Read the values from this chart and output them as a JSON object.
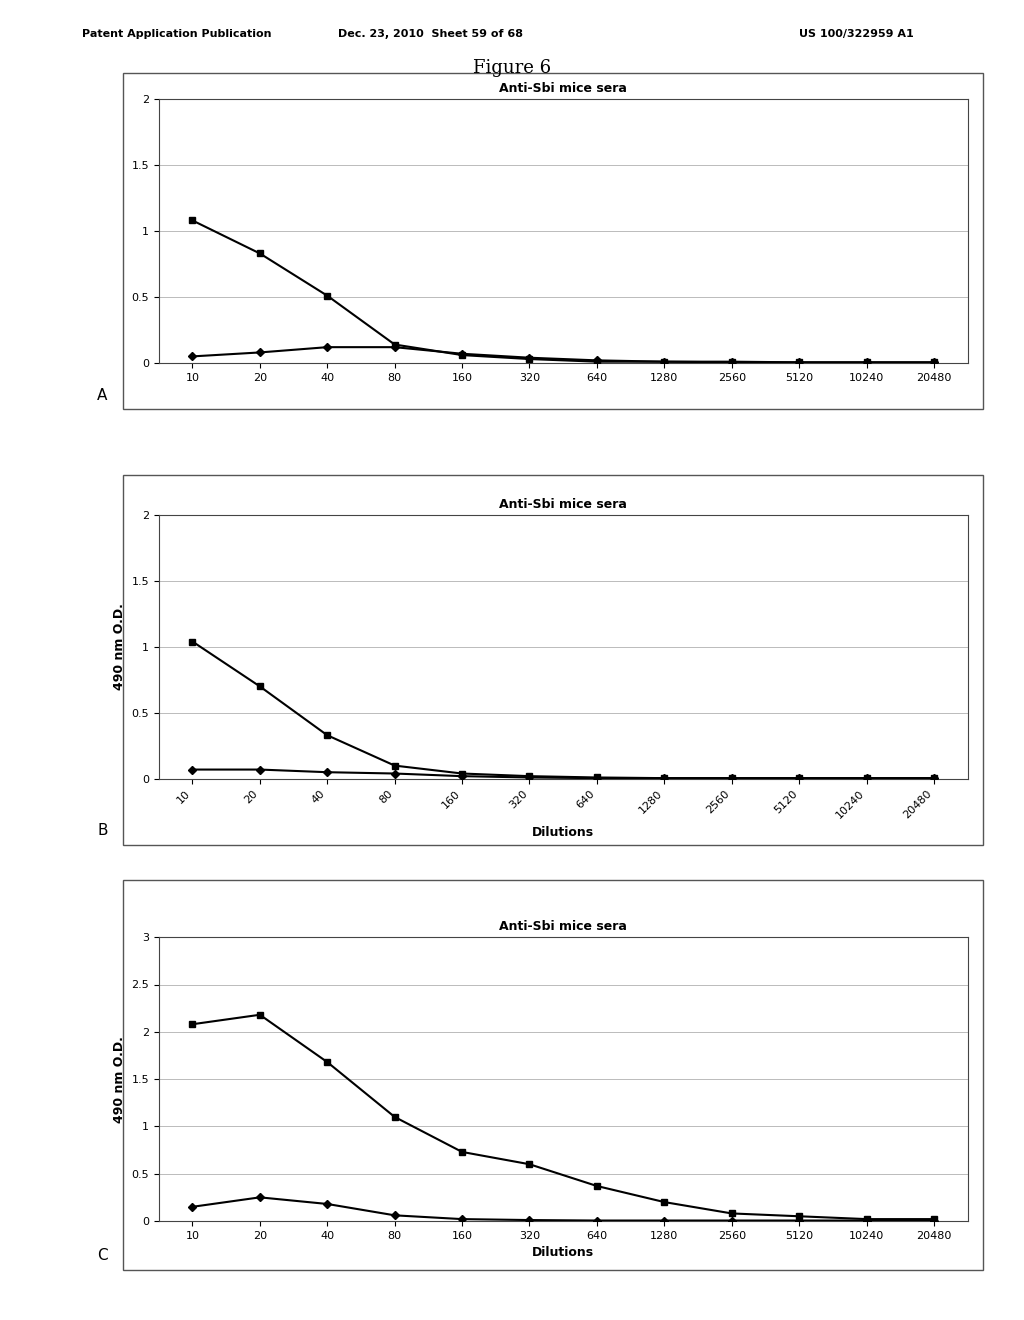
{
  "figure_title": "Figure 6",
  "header_left": "Patent Application Publication",
  "header_mid": "Dec. 23, 2010  Sheet 59 of 68",
  "header_right": "US 100/322959 A1",
  "chart_title": "Anti-Sbi mice sera",
  "x_labels": [
    "10",
    "20",
    "40",
    "80",
    "160",
    "320",
    "640",
    "1280",
    "2560",
    "5120",
    "10240",
    "20480"
  ],
  "panel_A": {
    "square_series": [
      1.08,
      0.83,
      0.51,
      0.14,
      0.06,
      0.03,
      0.01,
      0.01,
      0.01,
      0.005,
      0.005,
      0.005
    ],
    "diamond_series": [
      0.05,
      0.08,
      0.12,
      0.12,
      0.07,
      0.04,
      0.02,
      0.01,
      0.005,
      0.005,
      0.005,
      0.005
    ],
    "ylim": [
      0,
      2
    ],
    "yticks": [
      0,
      0.5,
      1,
      1.5,
      2
    ],
    "ylabel": "",
    "xlabel": "",
    "xrot": 0
  },
  "panel_B": {
    "square_series": [
      1.04,
      0.7,
      0.33,
      0.1,
      0.04,
      0.02,
      0.01,
      0.005,
      0.005,
      0.005,
      0.005,
      0.005
    ],
    "diamond_series": [
      0.07,
      0.07,
      0.05,
      0.04,
      0.02,
      0.01,
      0.005,
      0.005,
      0.005,
      0.005,
      0.005,
      0.005
    ],
    "ylim": [
      0,
      2
    ],
    "yticks": [
      0,
      0.5,
      1,
      1.5,
      2
    ],
    "ylabel": "490 nm O.D.",
    "xlabel": "Dilutions",
    "xrot": 45
  },
  "panel_C": {
    "square_series": [
      2.08,
      2.18,
      1.68,
      1.1,
      0.73,
      0.6,
      0.37,
      0.2,
      0.08,
      0.05,
      0.02,
      0.02
    ],
    "diamond_series": [
      0.15,
      0.25,
      0.18,
      0.06,
      0.02,
      0.01,
      0.005,
      0.005,
      0.005,
      0.005,
      0.005,
      0.005
    ],
    "ylim": [
      0,
      3
    ],
    "yticks": [
      0,
      0.5,
      1,
      1.5,
      2,
      2.5,
      3
    ],
    "ylabel": "490 nm O.D.",
    "xlabel": "Dilutions",
    "xrot": 0
  },
  "label_A": "A",
  "label_B": "B",
  "label_C": "C",
  "line_color": "#000000",
  "bg_color": "#ffffff",
  "page_bg": "#ffffff",
  "grid_color": "#bbbbbb",
  "marker_square": "s",
  "marker_diamond": "D",
  "marker_size": 5,
  "marker_size_diamond": 4,
  "line_width": 1.5,
  "chart_title_fontsize": 9,
  "tick_fontsize": 8,
  "axis_label_fontsize": 9,
  "panel_label_fontsize": 11,
  "fig_title_fontsize": 13,
  "header_fontsize": 8
}
